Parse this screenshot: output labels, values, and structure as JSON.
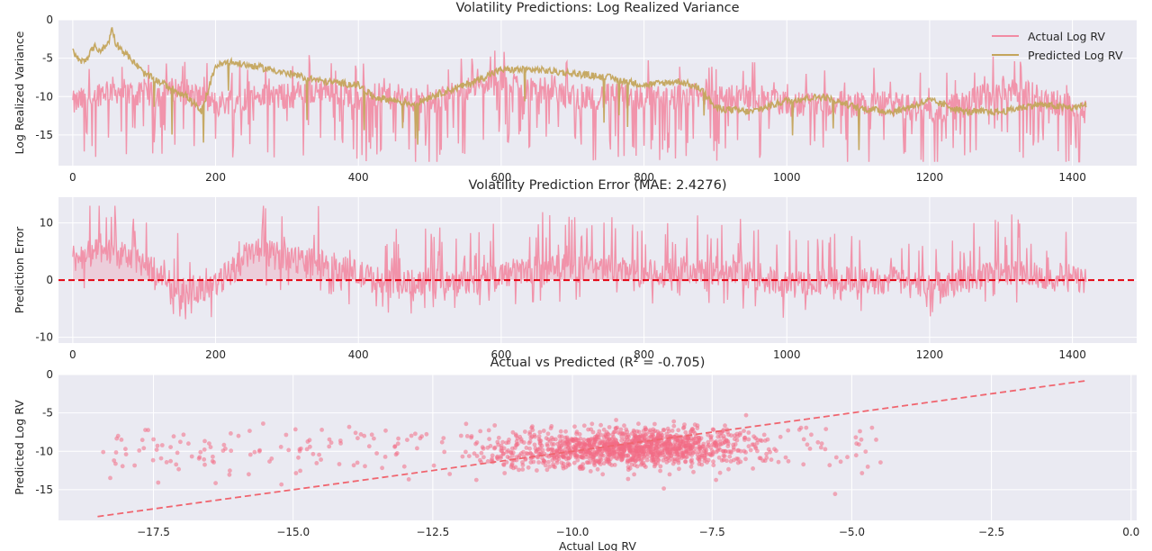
{
  "chart_data": [
    {
      "type": "line",
      "title": "Volatility Predictions: Log Realized Variance",
      "xlabel": "",
      "ylabel": "Log Realized Variance",
      "xlim": [
        -20,
        1490
      ],
      "ylim": [
        -19,
        0
      ],
      "xticks": [
        0,
        200,
        400,
        600,
        800,
        1000,
        1200,
        1400
      ],
      "yticks": [
        0,
        -5,
        -10,
        -15
      ],
      "grid": true,
      "legend_position": "top-right",
      "series": [
        {
          "name": "Actual Log RV",
          "color": "#f28ba3",
          "n_points": 1420,
          "x": [
            0,
            50,
            100,
            150,
            200,
            250,
            300,
            350,
            400,
            450,
            500,
            550,
            600,
            650,
            700,
            750,
            800,
            850,
            900,
            950,
            1000,
            1050,
            1100,
            1150,
            1200,
            1250,
            1300,
            1350,
            1420
          ],
          "values": [
            -11,
            -9,
            -10,
            -9,
            -11,
            -10,
            -10,
            -9,
            -10,
            -10,
            -11,
            -9,
            -8,
            -9,
            -10,
            -10,
            -10,
            -10,
            -10,
            -10,
            -11,
            -11,
            -11,
            -11,
            -12,
            -11,
            -9,
            -10,
            -12
          ],
          "range_low": -18.5,
          "range_high": -4
        },
        {
          "name": "Predicted Log RV",
          "color": "#c4a55c",
          "x": [
            0,
            10,
            20,
            30,
            40,
            50,
            55,
            60,
            70,
            80,
            90,
            100,
            120,
            140,
            160,
            180,
            200,
            220,
            250,
            280,
            300,
            350,
            400,
            420,
            450,
            480,
            500,
            550,
            600,
            650,
            700,
            750,
            800,
            850,
            880,
            900,
            950,
            1000,
            1050,
            1100,
            1150,
            1200,
            1250,
            1300,
            1350,
            1400,
            1420
          ],
          "values": [
            -4,
            -5.5,
            -5,
            -3.5,
            -4,
            -3,
            -1,
            -3,
            -4,
            -5,
            -6,
            -7,
            -8,
            -9,
            -10,
            -12,
            -6,
            -5.5,
            -6,
            -6.5,
            -7,
            -8,
            -8.5,
            -10,
            -10.5,
            -11,
            -10,
            -8.5,
            -6.5,
            -6.5,
            -7,
            -7.5,
            -8.5,
            -8,
            -9,
            -11.5,
            -12,
            -10.5,
            -10,
            -11.5,
            -12,
            -10.5,
            -12,
            -12,
            -11,
            -11.5,
            -11
          ]
        }
      ]
    },
    {
      "type": "line",
      "title": "Volatility Prediction Error (MAE: 2.4276)",
      "xlabel": "",
      "ylabel": "Prediction Error",
      "xlim": [
        -20,
        1490
      ],
      "ylim": [
        -11,
        14.5
      ],
      "xticks": [
        0,
        200,
        400,
        600,
        800,
        1000,
        1200,
        1400
      ],
      "yticks": [
        10,
        0,
        -10
      ],
      "grid": true,
      "reference_line": 0,
      "series": [
        {
          "name": "",
          "color": "#f28ba3",
          "n_points": 1420,
          "x": [
            0,
            50,
            100,
            150,
            200,
            250,
            300,
            350,
            400,
            450,
            500,
            550,
            600,
            650,
            700,
            750,
            800,
            850,
            900,
            950,
            1000,
            1050,
            1100,
            1150,
            1200,
            1250,
            1300,
            1350,
            1420
          ],
          "values": [
            4,
            5,
            3,
            -2,
            -1,
            5,
            4,
            3,
            1,
            -1,
            0,
            0,
            1,
            2,
            2,
            2,
            1,
            2,
            1,
            1,
            -1,
            0,
            0,
            0,
            -1,
            0,
            2,
            1,
            0
          ],
          "range_low": -10,
          "range_high": 13
        }
      ]
    },
    {
      "type": "scatter",
      "title": "Actual vs Predicted (R² = -0.705)",
      "xlabel": "Actual Log RV",
      "ylabel": "Predicted Log RV",
      "xlim": [
        -19.2,
        0.1
      ],
      "ylim": [
        -19,
        0
      ],
      "xticks": [
        -17.5,
        -15.0,
        -12.5,
        -10.0,
        -7.5,
        -5.0,
        -2.5,
        0.0
      ],
      "xtick_labels": [
        "−17.5",
        "−15.0",
        "−12.5",
        "−10.0",
        "−7.5",
        "−5.0",
        "−2.5",
        "0.0"
      ],
      "yticks": [
        0,
        -5,
        -10,
        -15
      ],
      "grid": true,
      "color": "#f26b85",
      "n_points": 1420,
      "cluster_center": [
        -9,
        -9.5
      ],
      "reference_line": {
        "from": [
          -18.5,
          -18.5
        ],
        "to": [
          -0.8,
          -0.8
        ],
        "style": "dashed"
      }
    }
  ]
}
